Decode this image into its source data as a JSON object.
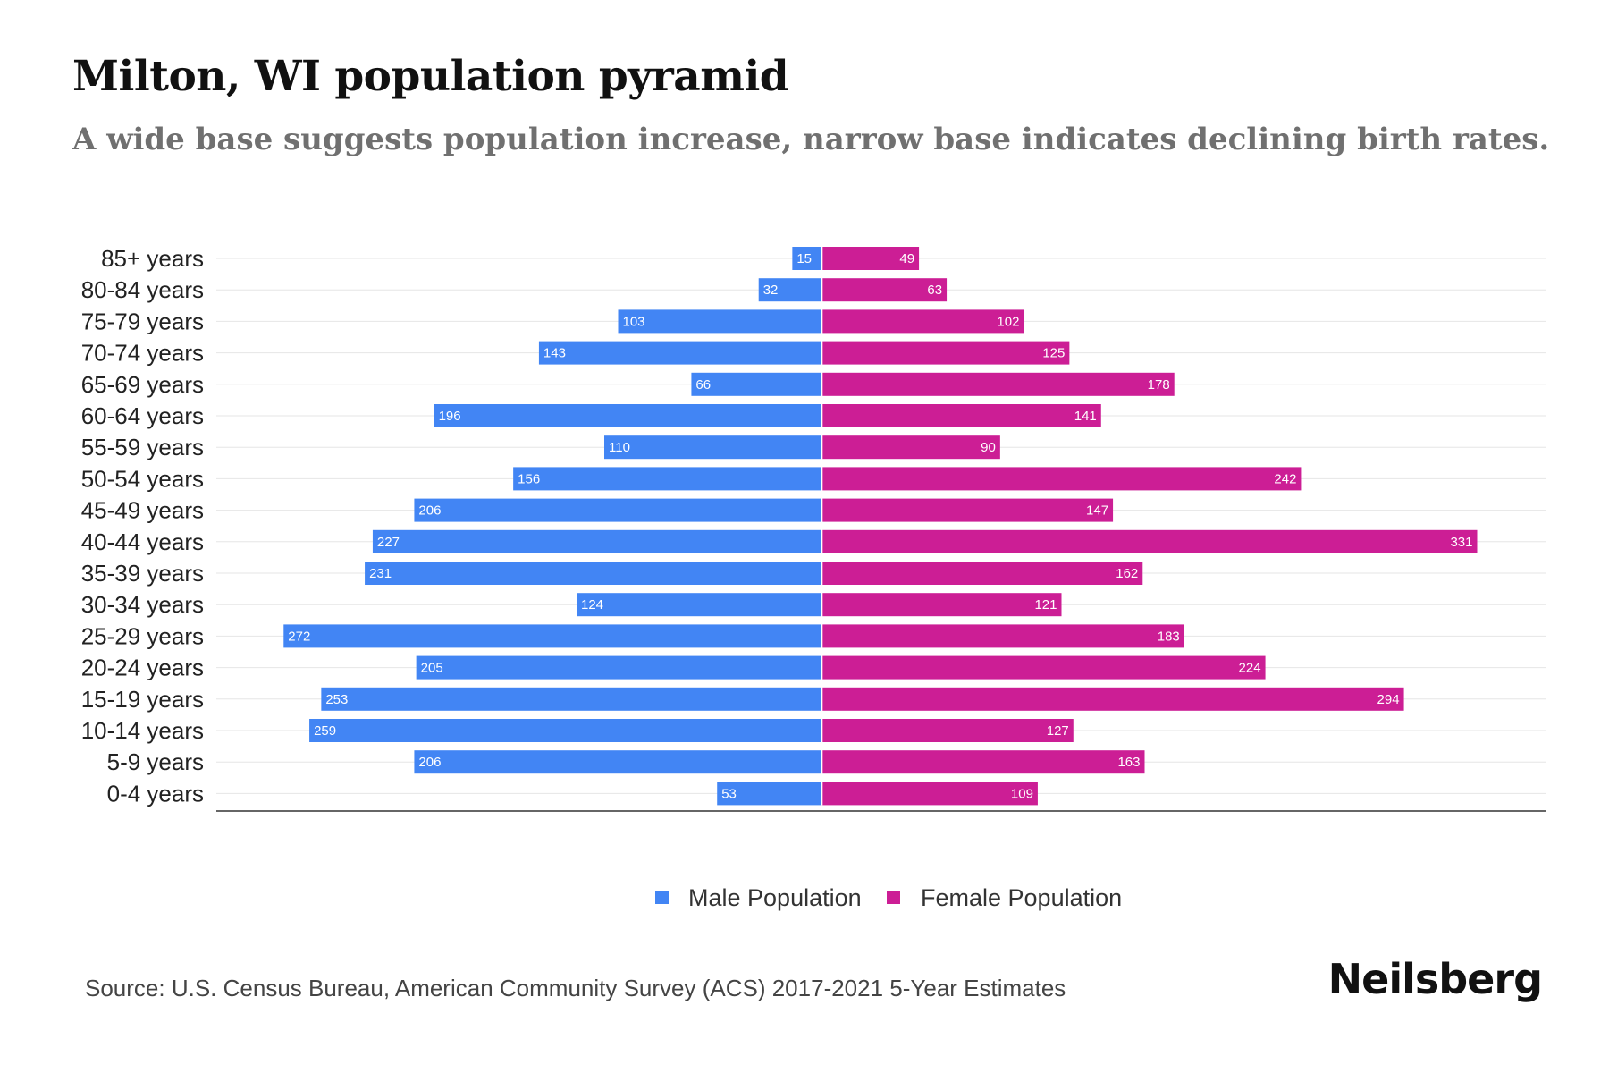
{
  "title": "Milton, WI population pyramid",
  "subtitle": "A wide base suggests population increase, narrow base indicates declining birth rates.",
  "source": "Source: U.S. Census Bureau, American Community Survey (ACS) 2017-2021 5-Year Estimates",
  "brand": "Neilsberg",
  "colors": {
    "male": "#4285f4",
    "female": "#cc1e95",
    "grid": "#e6e6e6",
    "axis": "#333333"
  },
  "chart_data": {
    "type": "bar",
    "orientation": "horizontal-diverging",
    "categories": [
      "85+ years",
      "80-84 years",
      "75-79 years",
      "70-74 years",
      "65-69 years",
      "60-64 years",
      "55-59 years",
      "50-54 years",
      "45-49 years",
      "40-44 years",
      "35-39 years",
      "30-34 years",
      "25-29 years",
      "20-24 years",
      "15-19 years",
      "10-14 years",
      "5-9 years",
      "0-4 years"
    ],
    "series": [
      {
        "name": "Male Population",
        "values": [
          15,
          32,
          103,
          143,
          66,
          196,
          110,
          156,
          206,
          227,
          231,
          124,
          272,
          205,
          253,
          259,
          206,
          53
        ]
      },
      {
        "name": "Female Population",
        "values": [
          49,
          63,
          102,
          125,
          178,
          141,
          90,
          242,
          147,
          331,
          162,
          121,
          183,
          224,
          294,
          127,
          163,
          109
        ]
      }
    ],
    "xlim": [
      -306,
      366
    ],
    "legend_position": "bottom-center",
    "grid": true
  }
}
